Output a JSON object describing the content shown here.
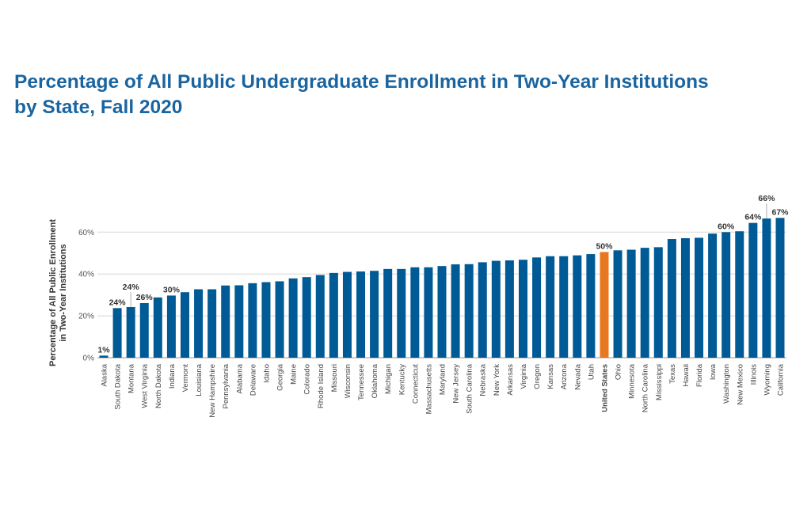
{
  "chart_data": {
    "type": "bar",
    "title": "Percentage of All Public Undergraduate Enrollment in Two-Year Institutions\nby State, Fall 2020",
    "ylabel_line1": "Percentage of All Public Enrollment",
    "ylabel_line2": "in Two-Year Institutions",
    "xlabel": "",
    "ylim": [
      0,
      70
    ],
    "yticks": [
      "0%",
      "20%",
      "40%",
      "60%"
    ],
    "ytick_values": [
      0,
      20,
      40,
      60
    ],
    "grid": true,
    "colors": {
      "bar": "#005a96",
      "highlight": "#e87722",
      "title": "#1a65a0"
    },
    "highlight_category": "United States",
    "categories": [
      "Alaska",
      "South Dakota",
      "Montana",
      "West Virginia",
      "North Dakota",
      "Indiana",
      "Vermont",
      "Louisiana",
      "New Hampshire",
      "Pennsylvania",
      "Alabama",
      "Delaware",
      "Idaho",
      "Georgia",
      "Maine",
      "Colorado",
      "Rhode Island",
      "Missouri",
      "Wisconsin",
      "Tennessee",
      "Oklahoma",
      "Michigan",
      "Kentucky",
      "Connecticut",
      "Massachusetts",
      "Maryland",
      "New Jersey",
      "South Carolina",
      "Nebraska",
      "New York",
      "Arkansas",
      "Virginia",
      "Oregon",
      "Kansas",
      "Arizona",
      "Nevada",
      "Utah",
      "United States",
      "Ohio",
      "Minnesota",
      "North Carolina",
      "Mississippi",
      "Texas",
      "Hawaii",
      "Florida",
      "Iowa",
      "Washington",
      "New Mexico",
      "Illinois",
      "Wyoming",
      "California"
    ],
    "values": [
      1,
      23.7,
      24.2,
      26.1,
      28.8,
      29.7,
      31.3,
      32.7,
      32.7,
      34.5,
      34.6,
      35.6,
      36.1,
      36.5,
      37.9,
      38.5,
      39.5,
      40.5,
      41.0,
      41.2,
      41.5,
      42.4,
      42.4,
      43.2,
      43.2,
      43.8,
      44.6,
      44.7,
      45.6,
      46.3,
      46.5,
      46.8,
      47.9,
      48.5,
      48.5,
      48.9,
      49.5,
      50.5,
      51.3,
      51.6,
      52.5,
      52.8,
      56.7,
      57.1,
      57.3,
      59.3,
      60.0,
      60.4,
      64.4,
      66.5,
      66.8
    ],
    "data_labels": [
      {
        "category": "Alaska",
        "text": "1%"
      },
      {
        "category": "South Dakota",
        "text": "24%"
      },
      {
        "category": "Montana",
        "text": "24%",
        "leader": true
      },
      {
        "category": "West Virginia",
        "text": "26%"
      },
      {
        "category": "Indiana",
        "text": "30%"
      },
      {
        "category": "United States",
        "text": "50%"
      },
      {
        "category": "Washington",
        "text": "60%"
      },
      {
        "category": "Illinois",
        "text": "64%"
      },
      {
        "category": "Wyoming",
        "text": "66%",
        "leader": true
      },
      {
        "category": "California",
        "text": "67%"
      }
    ]
  }
}
